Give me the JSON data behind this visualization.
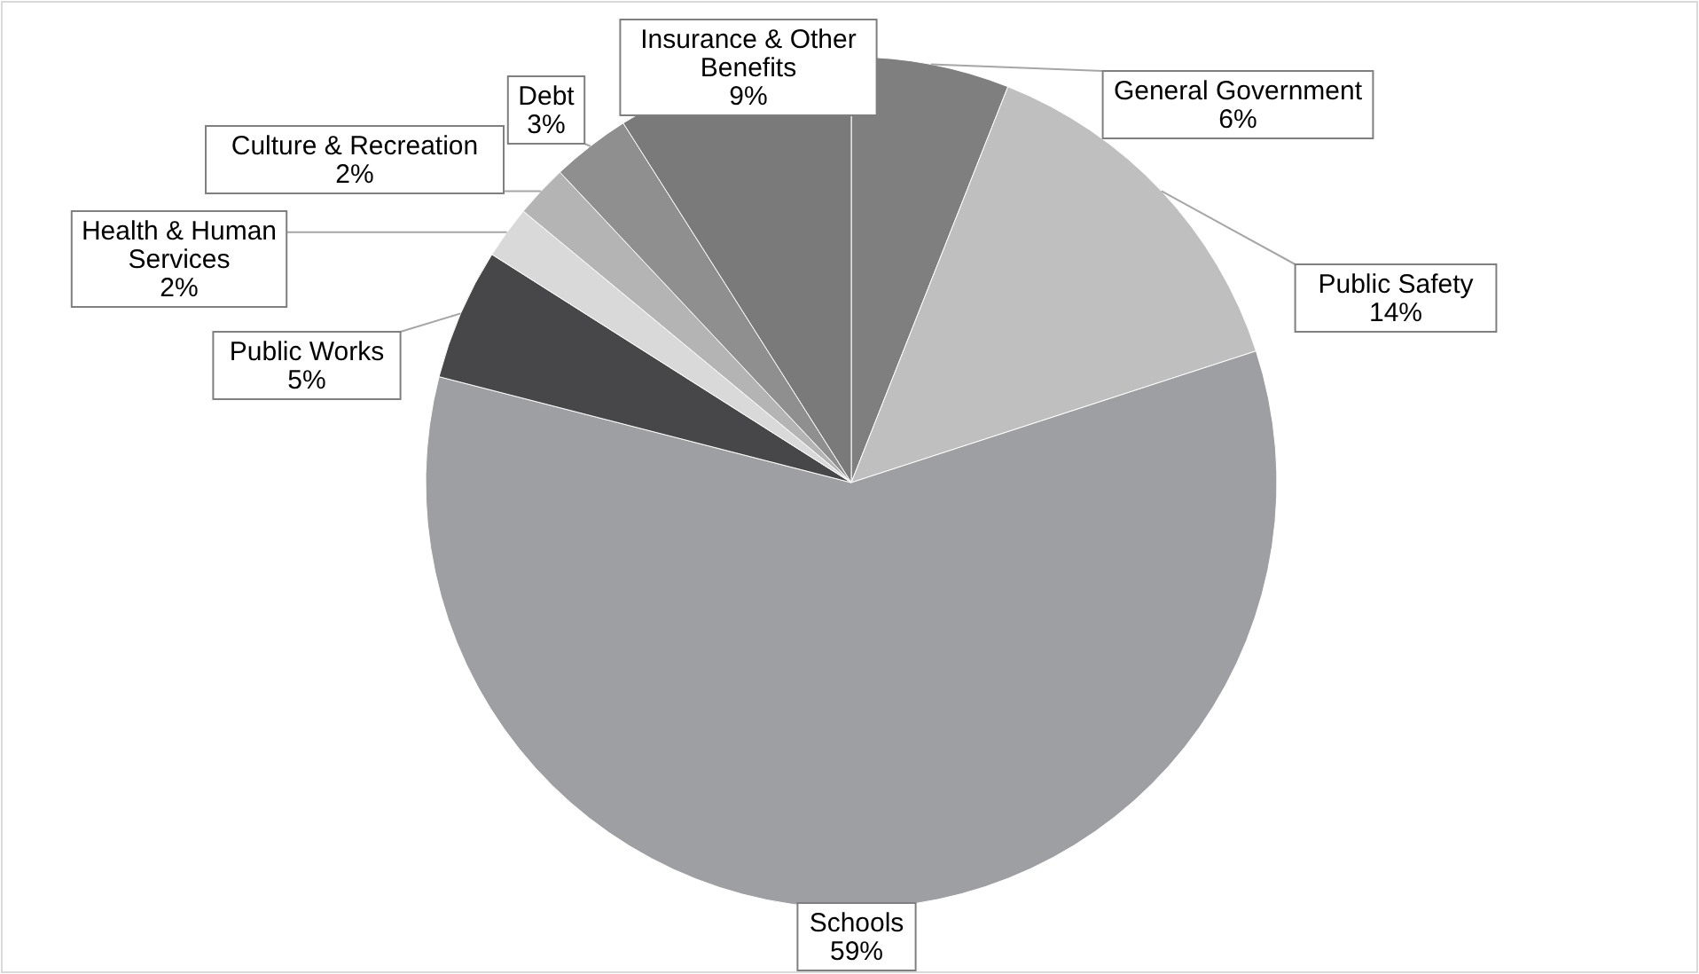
{
  "chart_data": {
    "type": "pie",
    "categories": [
      "General Government",
      "Public Safety",
      "Schools",
      "Public Works",
      "Health & Human Services",
      "Culture & Recreation",
      "Debt",
      "Insurance & Other Benefits"
    ],
    "values": [
      6,
      14,
      59,
      5,
      2,
      2,
      3,
      9
    ],
    "value_labels": [
      "6%",
      "14%",
      "59%",
      "5%",
      "2%",
      "2%",
      "3%",
      "9%"
    ],
    "colors": [
      "#7f7f7f",
      "#bfbfbf",
      "#9d9fa2",
      "#474749",
      "#d9d9d9",
      "#b4b4b4",
      "#8f8f8f",
      "#7a7a7a"
    ]
  }
}
